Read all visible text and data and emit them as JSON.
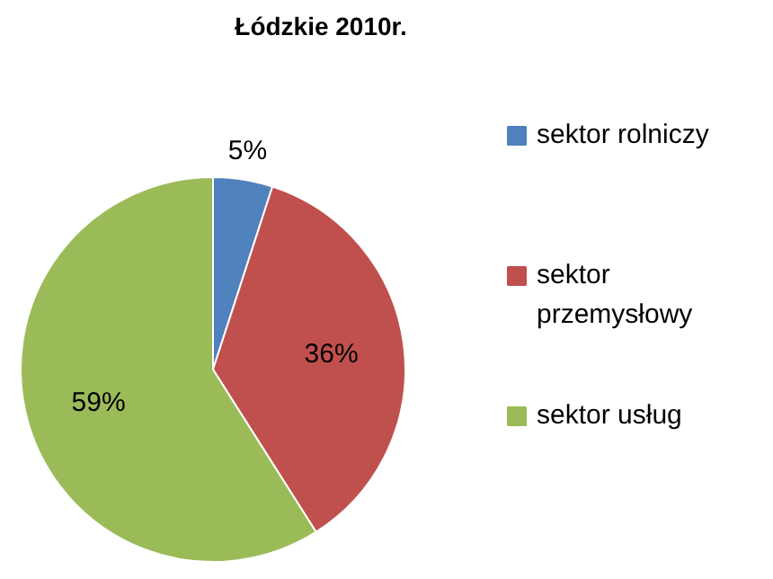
{
  "chart_data": {
    "type": "pie",
    "title": "Łódzkie 2010r.",
    "categories": [
      "sektor rolniczy",
      "sektor przemysłowy",
      "sektor usług"
    ],
    "values": [
      5,
      36,
      59
    ],
    "colors": [
      "#4f81bd",
      "#c0504d",
      "#9bbb59"
    ],
    "value_labels": [
      "5%",
      "36%",
      "59%"
    ],
    "legend": "right"
  }
}
